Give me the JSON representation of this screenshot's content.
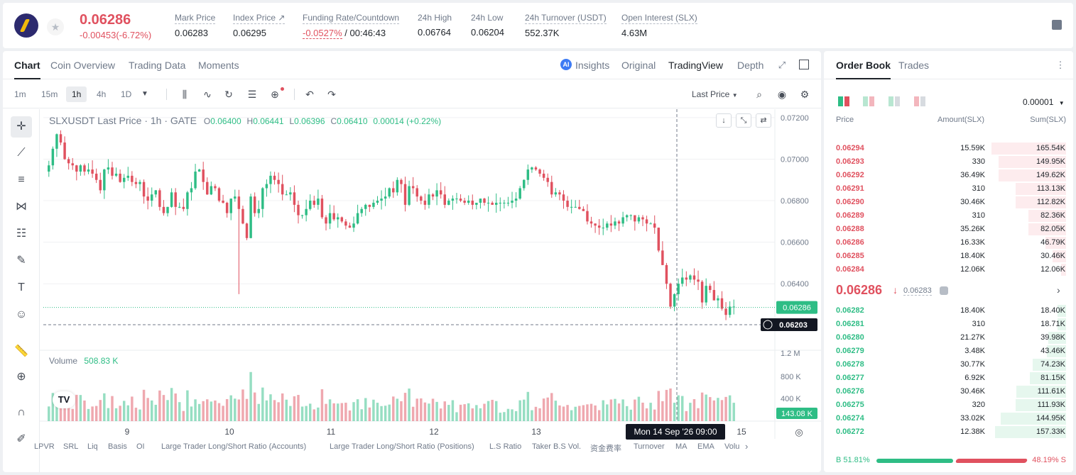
{
  "header": {
    "price": "0.06286",
    "change": "-0.00453(-6.72%)",
    "stats": [
      {
        "label": "Mark Price",
        "value": "0.06283"
      },
      {
        "label": "Index Price ↗",
        "value": "0.06295"
      },
      {
        "label": "Funding Rate/Countdown",
        "value_neg": "-0.0527%",
        "value": " / 00:46:43"
      },
      {
        "label": "24h High",
        "value": "0.06764"
      },
      {
        "label": "24h Low",
        "value": "0.06204"
      },
      {
        "label": "24h Turnover (USDT)",
        "value": "552.37K"
      },
      {
        "label": "Open Interest (SLX)",
        "value": "4.63M"
      }
    ]
  },
  "chart_tabs": [
    "Chart",
    "Coin Overview",
    "Trading Data",
    "Moments"
  ],
  "view_tabs": [
    "Insights",
    "Original",
    "TradingView",
    "Depth"
  ],
  "timeframes": [
    "1m",
    "15m",
    "1h",
    "4h",
    "1D"
  ],
  "price_type": "Last Price",
  "legend": {
    "symbol": "SLXUSDT Last Price · 1h · GATE",
    "o": "0.06400",
    "h": "0.06441",
    "l": "0.06396",
    "c": "0.06410",
    "chg": "0.00014 (+0.22%)"
  },
  "volume_legend": {
    "label": "Volume",
    "value": "508.83 K"
  },
  "bottom_indicators": [
    "LPVR",
    "SRL",
    "Liq",
    "Basis",
    "OI",
    "Large Trader Long/Short Ratio (Accounts)",
    "Large Trader Long/Short Ratio (Positions)",
    "L.S Ratio",
    "Taker B.S Vol.",
    "资金费率",
    "Turnover",
    "MA",
    "EMA",
    "Volu"
  ],
  "crosshair_time": "Mon 14 Sep '26   09:00",
  "chart_data": {
    "type": "candlestick",
    "x_ticks": [
      "9",
      "10",
      "11",
      "12",
      "13",
      "15"
    ],
    "y_ticks": [
      "0.07200",
      "0.07000",
      "0.06800",
      "0.06600",
      "0.06400"
    ],
    "volume_ticks": [
      "1.2 M",
      "800 K",
      "400 K"
    ],
    "ylim": [
      0.0608,
      0.0722
    ],
    "last_price_label": "0.06286",
    "crosshair_price_label": "0.06203",
    "last_volume_label": "143.08 K",
    "colors": {
      "up": "#2ebd85",
      "down": "#e0515f"
    },
    "closes": [
      0.0697,
      0.0705,
      0.0712,
      0.0708,
      0.07,
      0.0698,
      0.0697,
      0.0694,
      0.0697,
      0.0694,
      0.0695,
      0.0693,
      0.069,
      0.0685,
      0.0695,
      0.0696,
      0.0692,
      0.0693,
      0.0689,
      0.0691,
      0.0692,
      0.0689,
      0.0688,
      0.0689,
      0.0682,
      0.068,
      0.0683,
      0.0685,
      0.0677,
      0.0674,
      0.0677,
      0.0684,
      0.0677,
      0.0677,
      0.0676,
      0.0684,
      0.0686,
      0.0694,
      0.0695,
      0.0689,
      0.0683,
      0.0687,
      0.0686,
      0.068,
      0.0679,
      0.0674,
      0.0681,
      0.0682,
      0.0676,
      0.0669,
      0.0662,
      0.0682,
      0.0674,
      0.0676,
      0.0686,
      0.0688,
      0.0692,
      0.069,
      0.0688,
      0.0683,
      0.0683,
      0.0684,
      0.0678,
      0.0673,
      0.0673,
      0.0676,
      0.068,
      0.0678,
      0.0681,
      0.0672,
      0.0669,
      0.0674,
      0.0671,
      0.0672,
      0.067,
      0.0668,
      0.0667,
      0.0669,
      0.0674,
      0.0676,
      0.0678,
      0.0677,
      0.0679,
      0.068,
      0.0681,
      0.0682,
      0.0686,
      0.0684,
      0.069,
      0.0688,
      0.0678,
      0.0687,
      0.0686,
      0.0682,
      0.068,
      0.0678,
      0.0683,
      0.0682,
      0.0685,
      0.0683,
      0.0678,
      0.068,
      0.0681,
      0.0681,
      0.068,
      0.0679,
      0.068,
      0.0678,
      0.0679,
      0.0681,
      0.0679,
      0.0679,
      0.0678,
      0.0679,
      0.0679,
      0.0679,
      0.0679,
      0.068,
      0.0681,
      0.0686,
      0.069,
      0.0695,
      0.0696,
      0.0695,
      0.0693,
      0.0691,
      0.0689,
      0.0683,
      0.0684,
      0.0683,
      0.068,
      0.0677,
      0.0677,
      0.0677,
      0.0676,
      0.0675,
      0.067,
      0.0669,
      0.0668,
      0.0667,
      0.0667,
      0.0669,
      0.0668,
      0.067,
      0.0669,
      0.0672,
      0.0673,
      0.0673,
      0.067,
      0.0672,
      0.0671,
      0.0669,
      0.0669,
      0.0667,
      0.0656,
      0.0649,
      0.064,
      0.0629,
      0.0635,
      0.064,
      0.0643,
      0.0642,
      0.0644,
      0.0642,
      0.0641,
      0.0631,
      0.0639,
      0.0637,
      0.0632,
      0.0633,
      0.0628,
      0.0625,
      0.0629,
      0.0629
    ]
  },
  "orderbook": {
    "tabs": [
      "Order Book",
      "Trades"
    ],
    "precision": "0.00001",
    "headers": {
      "price": "Price",
      "amount": "Amount(SLX)",
      "sum": "Sum(SLX)"
    },
    "asks": [
      {
        "price": "0.06294",
        "amount": "15.59K",
        "sum": "165.54K",
        "depth": 1.0
      },
      {
        "price": "0.06293",
        "amount": "330",
        "sum": "149.95K",
        "depth": 0.9
      },
      {
        "price": "0.06292",
        "amount": "36.49K",
        "sum": "149.62K",
        "depth": 0.9
      },
      {
        "price": "0.06291",
        "amount": "310",
        "sum": "113.13K",
        "depth": 0.68
      },
      {
        "price": "0.06290",
        "amount": "30.46K",
        "sum": "112.82K",
        "depth": 0.68
      },
      {
        "price": "0.06289",
        "amount": "310",
        "sum": "82.36K",
        "depth": 0.5
      },
      {
        "price": "0.06288",
        "amount": "35.26K",
        "sum": "82.05K",
        "depth": 0.5
      },
      {
        "price": "0.06286",
        "amount": "16.33K",
        "sum": "46.79K",
        "depth": 0.28
      },
      {
        "price": "0.06285",
        "amount": "18.40K",
        "sum": "30.46K",
        "depth": 0.18
      },
      {
        "price": "0.06284",
        "amount": "12.06K",
        "sum": "12.06K",
        "depth": 0.07
      }
    ],
    "mid": {
      "price": "0.06286",
      "arrow": "↓",
      "mark": "0.06283",
      "chevron": "›"
    },
    "bids": [
      {
        "price": "0.06282",
        "amount": "18.40K",
        "sum": "18.40K",
        "depth": 0.11
      },
      {
        "price": "0.06281",
        "amount": "310",
        "sum": "18.71K",
        "depth": 0.11
      },
      {
        "price": "0.06280",
        "amount": "21.27K",
        "sum": "39.98K",
        "depth": 0.24
      },
      {
        "price": "0.06279",
        "amount": "3.48K",
        "sum": "43.46K",
        "depth": 0.26
      },
      {
        "price": "0.06278",
        "amount": "30.77K",
        "sum": "74.23K",
        "depth": 0.45
      },
      {
        "price": "0.06277",
        "amount": "6.92K",
        "sum": "81.15K",
        "depth": 0.49
      },
      {
        "price": "0.06276",
        "amount": "30.46K",
        "sum": "111.61K",
        "depth": 0.67
      },
      {
        "price": "0.06275",
        "amount": "320",
        "sum": "111.93K",
        "depth": 0.68
      },
      {
        "price": "0.06274",
        "amount": "33.02K",
        "sum": "144.95K",
        "depth": 0.88
      },
      {
        "price": "0.06272",
        "amount": "12.38K",
        "sum": "157.33K",
        "depth": 0.95
      }
    ],
    "ratio": {
      "buy": "B 51.81%",
      "sell": "48.19% S"
    }
  }
}
